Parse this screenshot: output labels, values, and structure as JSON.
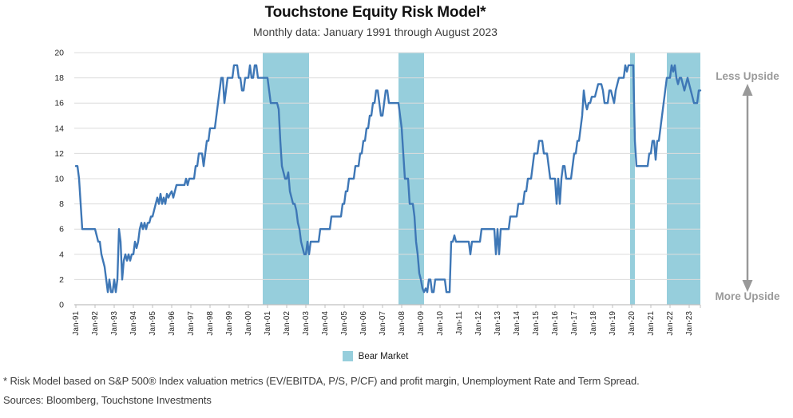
{
  "header": {
    "title": "Touchstone Equity Risk Model*",
    "subtitle": "Monthly data: January 1991 through August 2023"
  },
  "annotations": {
    "less_upside": "Less Upside",
    "more_upside": "More Upside"
  },
  "legend": {
    "bear_market_label": "Bear Market"
  },
  "footnotes": {
    "risk_model_note": "* Risk Model based on S&P 500® Index valuation metrics (EV/EBITDA, P/S, P/CF) and profit margin, Unemployment Rate and Term Spread.",
    "sources": "Sources:  Bloomberg, Touchstone Investments"
  },
  "colors": {
    "line": "#3E77B6",
    "bear_band": "#96CEDC",
    "grid": "#DCDCDC",
    "axis": "#BFBFBF",
    "tick_text": "#262626",
    "arrow": "#999999"
  },
  "chart_data": {
    "type": "line",
    "title": "Touchstone Equity Risk Model*",
    "subtitle": "Monthly data: January 1991 through August 2023",
    "xlabel": "",
    "ylabel": "",
    "ylim": [
      0,
      20
    ],
    "grid": true,
    "start_month": "1991-01",
    "end_month": "2023-08",
    "y_ticks": [
      0,
      2,
      4,
      6,
      8,
      10,
      12,
      14,
      16,
      18,
      20
    ],
    "x_tick_labels": [
      "Jan-91",
      "Jan-92",
      "Jan-93",
      "Jan-94",
      "Jan-95",
      "Jan-96",
      "Jan-97",
      "Jan-98",
      "Jan-99",
      "Jan-00",
      "Jan-01",
      "Jan-02",
      "Jan-03",
      "Jan-04",
      "Jan-05",
      "Jan-06",
      "Jan-07",
      "Jan-08",
      "Jan-09",
      "Jan-10",
      "Jan-11",
      "Jan-12",
      "Jan-13",
      "Jan-14",
      "Jan-15",
      "Jan-16",
      "Jan-17",
      "Jan-18",
      "Jan-19",
      "Jan-20",
      "Jan-21",
      "Jan-22",
      "Jan-23"
    ],
    "series": [
      {
        "name": "Equity Risk Model",
        "values": [
          11,
          11,
          10,
          8,
          6,
          6,
          6,
          6,
          6,
          6,
          6,
          6,
          6,
          5.5,
          5,
          5,
          4,
          3.5,
          3,
          2,
          1,
          2,
          1,
          1,
          2,
          1,
          2,
          6,
          5,
          2,
          3.5,
          4,
          3.5,
          4,
          3.5,
          4,
          4,
          5,
          4.5,
          5,
          6,
          6.5,
          6,
          6.5,
          6,
          6.5,
          6.5,
          7,
          7,
          7.5,
          8,
          8.5,
          8,
          8.8,
          8,
          8.5,
          8,
          8.8,
          8.5,
          8.8,
          9,
          8.5,
          9,
          9.5,
          9.5,
          9.5,
          9.5,
          9.5,
          9.5,
          10,
          9.5,
          10,
          10,
          10,
          10,
          11,
          11,
          12,
          12,
          12,
          11,
          12,
          13,
          13,
          14,
          14,
          14,
          14,
          15,
          16,
          17,
          18,
          18,
          16,
          17,
          18,
          18,
          18,
          18,
          19,
          19,
          19,
          18,
          18,
          17,
          17,
          18,
          18,
          18,
          19,
          18,
          18,
          19,
          19,
          18,
          18,
          18,
          18,
          18,
          18,
          18,
          17,
          16,
          16,
          16,
          16,
          16,
          15.5,
          13,
          11,
          10.5,
          10,
          10,
          10.5,
          9,
          8.5,
          8,
          8,
          7.5,
          6.5,
          6,
          5,
          4.5,
          4,
          4,
          5,
          4,
          5,
          5,
          5,
          5,
          5,
          5,
          6,
          6,
          6,
          6,
          6,
          6,
          6,
          7,
          7,
          7,
          7,
          7,
          7,
          7,
          8,
          8,
          9,
          9,
          10,
          10,
          10,
          10,
          11,
          11,
          11,
          12,
          12,
          13,
          13,
          14,
          14,
          15,
          15,
          16,
          16,
          17,
          17,
          16,
          15,
          15,
          16,
          17,
          17,
          16,
          16,
          16,
          16,
          16,
          16,
          16,
          15,
          14,
          12,
          10,
          10,
          10,
          8,
          8,
          8,
          7,
          5,
          4,
          2.5,
          2,
          1.3,
          1,
          1.3,
          1,
          2,
          2,
          1,
          1,
          2,
          2,
          2,
          2,
          2,
          2,
          2,
          1,
          1,
          1,
          5,
          5,
          5.5,
          5,
          5,
          5,
          5,
          5,
          5,
          5,
          5,
          5,
          4,
          5,
          5,
          5,
          5,
          5,
          5,
          6,
          6,
          6,
          6,
          6,
          6,
          6,
          6,
          6,
          4,
          6,
          4,
          6,
          6,
          6,
          6,
          6,
          6,
          7,
          7,
          7,
          7,
          7,
          8,
          8,
          8,
          8,
          9,
          9,
          10,
          10,
          10,
          11,
          12,
          12,
          12,
          13,
          13,
          13,
          12,
          12,
          12,
          11,
          10,
          10,
          10,
          10,
          8,
          10,
          8,
          10,
          11,
          11,
          10,
          10,
          10,
          10,
          11,
          12,
          12,
          13,
          13,
          14,
          15,
          17,
          16,
          15.5,
          16,
          16,
          16.5,
          16.5,
          16.5,
          17,
          17.5,
          17.5,
          17.5,
          17,
          16,
          16,
          16,
          17,
          17,
          16.5,
          16,
          17,
          17.5,
          18,
          18,
          18,
          18,
          19,
          18.5,
          19,
          19,
          19,
          19,
          13,
          11,
          11,
          11,
          11,
          11,
          11,
          11,
          11,
          12,
          12,
          13,
          13,
          11.5,
          13,
          13,
          14,
          15,
          16,
          17,
          18,
          18,
          18,
          19,
          18.5,
          19,
          18,
          17.5,
          18,
          18,
          17.5,
          17,
          17.5,
          18,
          17.5,
          17,
          16.5,
          16,
          16,
          16,
          17,
          17
        ]
      }
    ],
    "bear_markets": [
      {
        "name": "Bear Market 2000-2003",
        "start": "2000-10",
        "end": "2003-03"
      },
      {
        "name": "Bear Market 2007-2009",
        "start": "2007-11",
        "end": "2009-03"
      },
      {
        "name": "Bear Market 2020",
        "start": "2019-12",
        "end": "2020-03"
      },
      {
        "name": "Bear Market 2022-2023",
        "start": "2021-11",
        "end": "2023-08"
      }
    ],
    "legend_entries": [
      "Bear Market"
    ],
    "legend_position": "bottom"
  }
}
